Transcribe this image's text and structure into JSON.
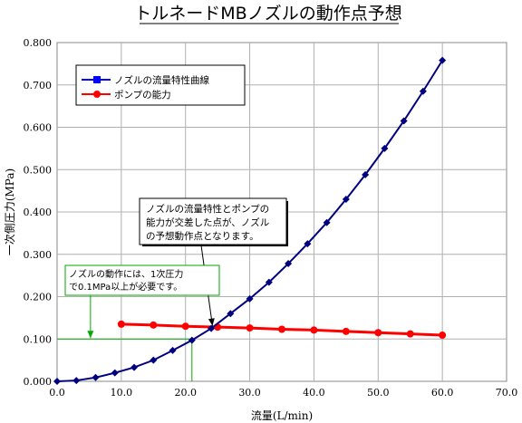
{
  "chart_data": {
    "type": "line",
    "title": "トルネードMBノズルの動作点予想",
    "xlabel": "流量(L/min)",
    "ylabel": "一次側圧力(MPa)",
    "xlim": [
      0,
      70
    ],
    "ylim": [
      0,
      0.8
    ],
    "x_ticks": [
      "0.0",
      "10.0",
      "20.0",
      "30.0",
      "40.0",
      "50.0",
      "60.0",
      "70.0"
    ],
    "y_ticks": [
      "0.000",
      "0.100",
      "0.200",
      "0.300",
      "0.400",
      "0.500",
      "0.600",
      "0.700",
      "0.800"
    ],
    "grid": true,
    "legend_position": "top-left",
    "series": [
      {
        "name": "ノズルの流量特性曲線",
        "color": "#000080",
        "marker": "diamond",
        "x": [
          0,
          3,
          6,
          9,
          12,
          15,
          18,
          21,
          24,
          27,
          30,
          33,
          36,
          39,
          42,
          45,
          48,
          51,
          54,
          57,
          60
        ],
        "y": [
          0.0,
          0.002,
          0.009,
          0.02,
          0.033,
          0.05,
          0.073,
          0.097,
          0.125,
          0.16,
          0.195,
          0.234,
          0.278,
          0.325,
          0.375,
          0.43,
          0.488,
          0.55,
          0.615,
          0.685,
          0.758
        ]
      },
      {
        "name": "ポンプの能力",
        "color": "#ff0000",
        "marker": "circle",
        "x": [
          10,
          15,
          20,
          25,
          30,
          35,
          40,
          45,
          50,
          55,
          60
        ],
        "y": [
          0.135,
          0.133,
          0.13,
          0.128,
          0.126,
          0.123,
          0.121,
          0.118,
          0.115,
          0.112,
          0.109
        ]
      }
    ],
    "annotations": [
      {
        "text_lines": [
          "ノズルの流量特性とポンプの",
          "能力が交差した点が、ノズル",
          "の予想動作点となります。"
        ],
        "target_x": 24.2,
        "target_y": 0.127,
        "color": "#000000"
      },
      {
        "text_lines": [
          "ノズルの動作には、1次圧力",
          "で0.1MPa以上が必要です。"
        ],
        "target_x": 5.2,
        "target_y": 0.1,
        "color": "#00aa00"
      }
    ],
    "reference_lines": {
      "min_pressure": 0.1,
      "min_pressure_end_x": 21,
      "min_pressure_flow": 21,
      "color": "#00aa00"
    }
  }
}
